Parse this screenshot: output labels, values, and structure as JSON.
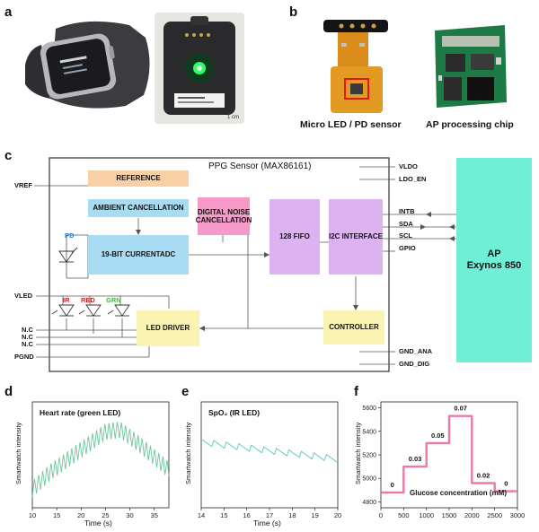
{
  "labels": {
    "a": "a",
    "b": "b",
    "c": "c",
    "d": "d",
    "e": "e",
    "f": "f"
  },
  "panel_a": {
    "scale_bar": "1 cm"
  },
  "panel_b": {
    "left_caption": "Micro LED / PD sensor",
    "right_caption": "AP processing chip"
  },
  "panel_c": {
    "sensor_title": "PPG Sensor (MAX86161)",
    "blocks": {
      "reference": "REFERENCE",
      "ambient": "AMBIENT CANCELLATION",
      "adc": "19-BIT CURRENTADC",
      "noise": "DIGITAL NOISE CANCELLATION",
      "fifo": "128 FIFO",
      "i2c": "I2C INTERFACE",
      "controller": "CONTROLLER",
      "led_driver": "LED DRIVER"
    },
    "pd_label": "PD",
    "led_labels": {
      "ir": "IR",
      "red": "RED",
      "grn": "GRN"
    },
    "led_colors": {
      "ir": "#d62020",
      "red": "#d62020",
      "grn": "#4caf50"
    },
    "left_pins": [
      "VREF",
      "VLED",
      "N.C",
      "N.C",
      "N.C",
      "PGND"
    ],
    "right_pins": [
      "VLDO",
      "LDO_EN",
      "INTB",
      "SDA",
      "SCL",
      "GPIO",
      "GND_ANA",
      "GND_DIG"
    ],
    "ap_line1": "AP",
    "ap_line2": "Exynos 850",
    "colors": {
      "reference": "#f9cfa6",
      "ambient": "#a7dcf3",
      "noise": "#f59ac8",
      "fifo": "#dcb2f0",
      "controller": "#fbf3b2",
      "ap": "#6ff0d6"
    }
  },
  "chart_data": [
    {
      "type": "line",
      "title": "Heart rate (green LED)",
      "xlabel": "Time (s)",
      "ylabel": "Smartwatch intensity",
      "xlim": [
        10,
        38
      ],
      "xticks": [
        10,
        15,
        20,
        25,
        30,
        35
      ],
      "color": "#6cc79a",
      "trend": [
        [
          10,
          0.18
        ],
        [
          14,
          0.35
        ],
        [
          20,
          0.55
        ],
        [
          25,
          0.72
        ],
        [
          28,
          0.74
        ],
        [
          32,
          0.6
        ],
        [
          35,
          0.48
        ],
        [
          38,
          0.36
        ]
      ],
      "beat_period_s": 0.85,
      "beat_amplitude": 0.16
    },
    {
      "type": "line",
      "title": "SpO₂ (IR LED)",
      "xlabel": "Time (s)",
      "ylabel": "Smartwatch intensity",
      "xlim": [
        14,
        20
      ],
      "xticks": [
        14,
        15,
        16,
        17,
        18,
        19,
        20
      ],
      "color": "#66ccc0",
      "start_level": 0.62,
      "end_level": 0.46,
      "beat_period_s": 0.55,
      "beat_amplitude": 0.06
    },
    {
      "type": "line",
      "title": "",
      "xlabel": "Glucose concentration (mM)",
      "ylabel": "Smartwatch intensity",
      "xlim": [
        0,
        3000
      ],
      "ylim": [
        4750,
        5650
      ],
      "xticks": [
        0,
        500,
        1000,
        1500,
        2000,
        2500,
        3000
      ],
      "yticks": [
        4800,
        5000,
        5200,
        5400,
        5600
      ],
      "color": "#e8609a",
      "steps": [
        {
          "x0": 0,
          "x1": 500,
          "y": 4880,
          "label": "0"
        },
        {
          "x0": 500,
          "x1": 1000,
          "y": 5100,
          "label": "0.03"
        },
        {
          "x0": 1000,
          "x1": 1500,
          "y": 5300,
          "label": "0.05"
        },
        {
          "x0": 1500,
          "x1": 2000,
          "y": 5530,
          "label": "0.07"
        },
        {
          "x0": 2000,
          "x1": 2500,
          "y": 4960,
          "label": "0.02"
        },
        {
          "x0": 2500,
          "x1": 3000,
          "y": 4890,
          "label": "0"
        }
      ]
    }
  ]
}
